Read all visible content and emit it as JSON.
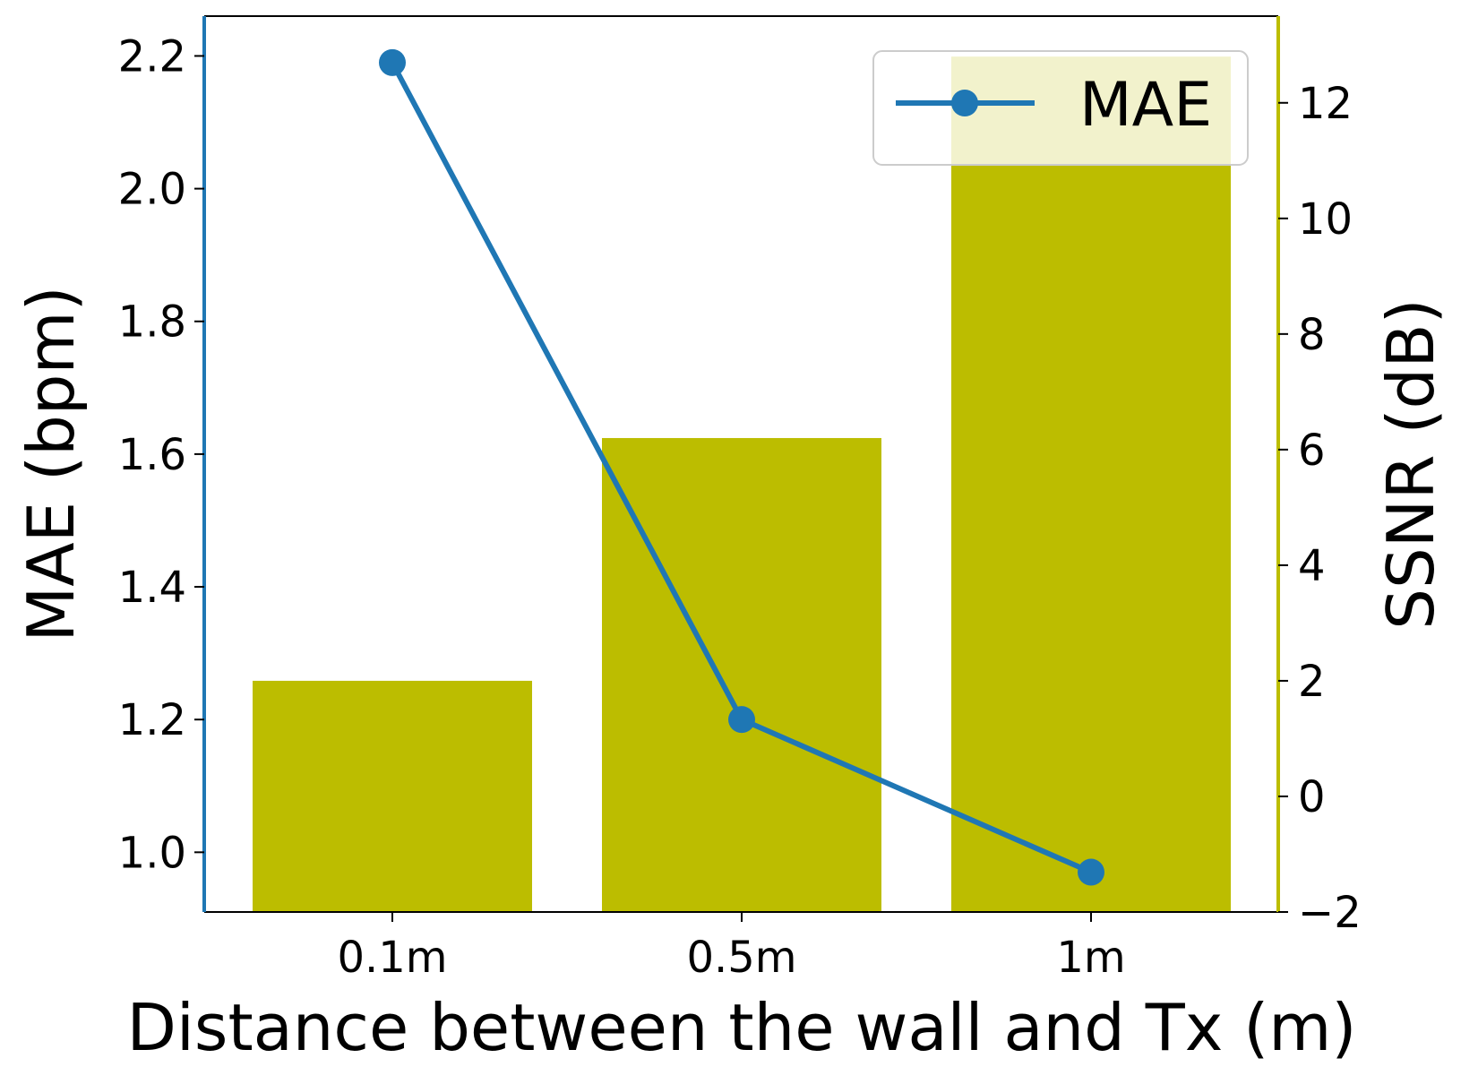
{
  "chart_data": {
    "type": "bar+line",
    "title": "",
    "xlabel": "Distance between the wall and Tx (m)",
    "categories": [
      "0.1m",
      "0.5m",
      "1m"
    ],
    "left_axis": {
      "label": "MAE (bpm)",
      "ylim": [
        0.91,
        2.26
      ],
      "ticks": [
        1.0,
        1.2,
        1.4,
        1.6,
        1.8,
        2.0,
        2.2
      ],
      "tick_labels": [
        "1.0",
        "1.2",
        "1.4",
        "1.6",
        "1.8",
        "2.0",
        "2.2"
      ],
      "color": "#1f77b4"
    },
    "right_axis": {
      "label": "SSNR (dB)",
      "ylim": [
        -2.0,
        13.5
      ],
      "ticks": [
        -2,
        0,
        2,
        4,
        6,
        8,
        10,
        12
      ],
      "tick_labels": [
        "−2",
        "0",
        "2",
        "4",
        "6",
        "8",
        "10",
        "12"
      ],
      "color": "#bcbd00"
    },
    "series": [
      {
        "name": "SSNR",
        "type": "bar",
        "axis": "right",
        "color": "#bcbd00",
        "values": [
          2.0,
          6.2,
          12.8
        ]
      },
      {
        "name": "MAE",
        "type": "line",
        "axis": "left",
        "color": "#1f77b4",
        "marker": "circle",
        "values": [
          2.19,
          1.2,
          0.97
        ]
      }
    ],
    "legend": {
      "placement": "top-right",
      "entries": [
        "MAE"
      ]
    },
    "grid": false
  }
}
